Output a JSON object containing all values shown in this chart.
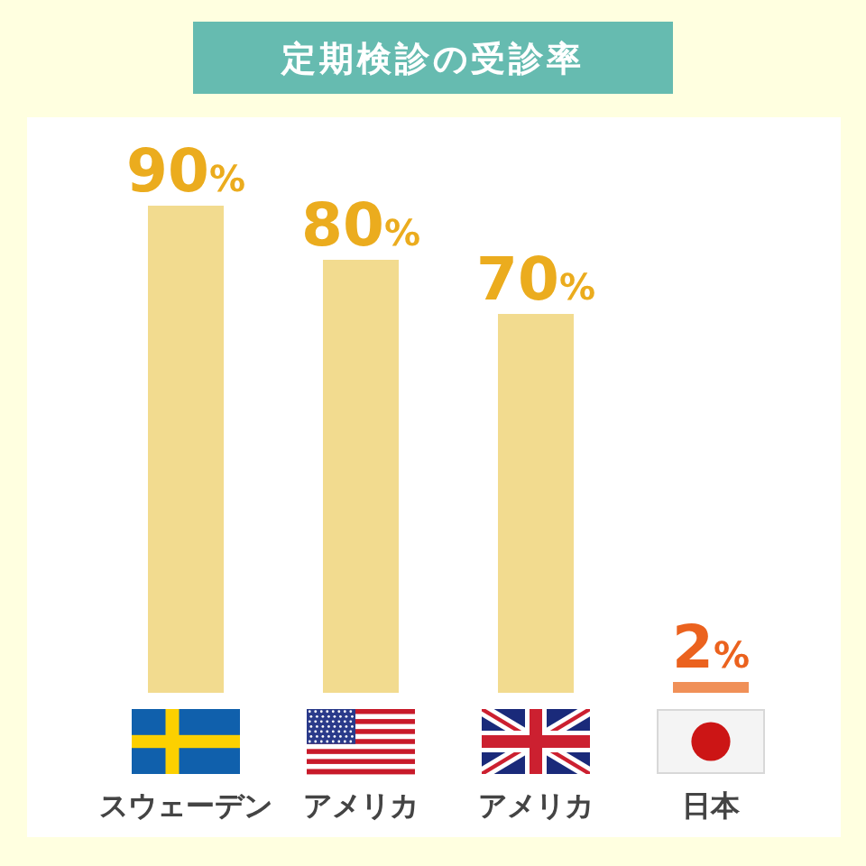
{
  "chart_data": {
    "type": "bar",
    "title": "定期検診の受診率",
    "categories": [
      "スウェーデン",
      "アメリカ",
      "アメリカ",
      "日本"
    ],
    "values": [
      90,
      80,
      70,
      2
    ],
    "colors": [
      "#f2db8f",
      "#f2db8f",
      "#f2db8f",
      "#f09058"
    ],
    "value_labels": [
      "90%",
      "80%",
      "70%",
      "2%"
    ]
  }
}
